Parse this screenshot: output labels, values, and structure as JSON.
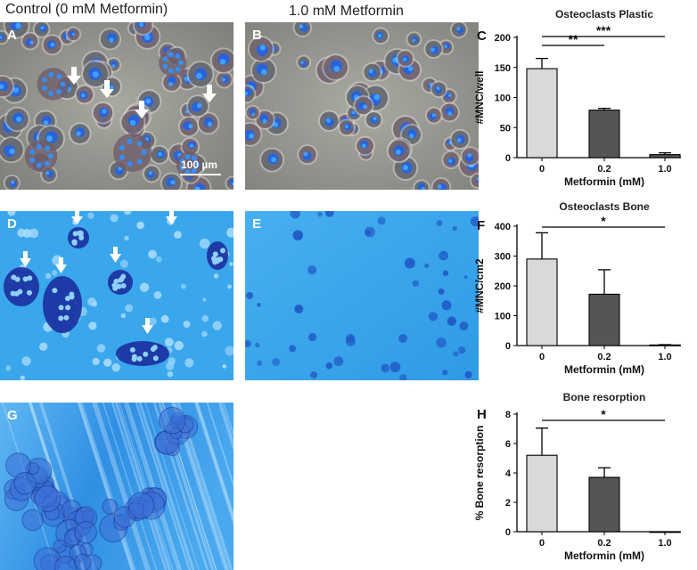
{
  "figure": {
    "column_titles": [
      "Control (0 mM Metformin)",
      "1.0 mM Metformin"
    ],
    "scale_bar_label": "100 µm",
    "panel_letters": {
      "A": "A",
      "B": "B",
      "C": "C",
      "D": "D",
      "E": "E",
      "F": "F",
      "G": "G",
      "H": "H"
    },
    "colors": {
      "bar_light": "#d9d9d9",
      "bar_dark": "#555555",
      "micro_phase": "#9a9a94",
      "micro_blue": "#39a3ea",
      "nucleus": "#1f3fc4"
    }
  },
  "chart_data": [
    {
      "panel": "C",
      "type": "bar",
      "title": "Osteoclasts Plastic",
      "xlabel": "Metformin (mM)",
      "ylabel": "#MNC/well",
      "categories": [
        "0",
        "0.2",
        "1.0"
      ],
      "values": [
        148,
        79,
        5
      ],
      "errors": [
        17,
        3,
        3
      ],
      "ylim": [
        0,
        200
      ],
      "yticks": [
        "0",
        "50",
        "100",
        "150",
        "200"
      ],
      "significance": [
        {
          "from": 0,
          "to": 1,
          "label": "**"
        },
        {
          "from": 0,
          "to": 2,
          "label": "***"
        }
      ]
    },
    {
      "panel": "F",
      "type": "bar",
      "title": "Osteoclasts Bone",
      "xlabel": "Metformin (mM)",
      "ylabel": "#MNC/cm2",
      "categories": [
        "0",
        "0.2",
        "1.0"
      ],
      "values": [
        290,
        172,
        2
      ],
      "errors": [
        88,
        82,
        1
      ],
      "ylim": [
        0,
        400
      ],
      "yticks": [
        "0",
        "100",
        "200",
        "300",
        "400"
      ],
      "significance": [
        {
          "from": 0,
          "to": 2,
          "label": "*"
        }
      ]
    },
    {
      "panel": "H",
      "type": "bar",
      "title": "Bone resorption",
      "xlabel": "Metformin (mM)",
      "ylabel": "% Bone resorption",
      "categories": [
        "0",
        "0.2",
        "1.0"
      ],
      "values": [
        5.2,
        3.7,
        0
      ],
      "errors": [
        1.85,
        0.65,
        0
      ],
      "ylim": [
        0,
        8
      ],
      "yticks": [
        "0",
        "2",
        "4",
        "6",
        "8"
      ],
      "significance": [
        {
          "from": 0,
          "to": 2,
          "label": "*"
        }
      ]
    }
  ]
}
